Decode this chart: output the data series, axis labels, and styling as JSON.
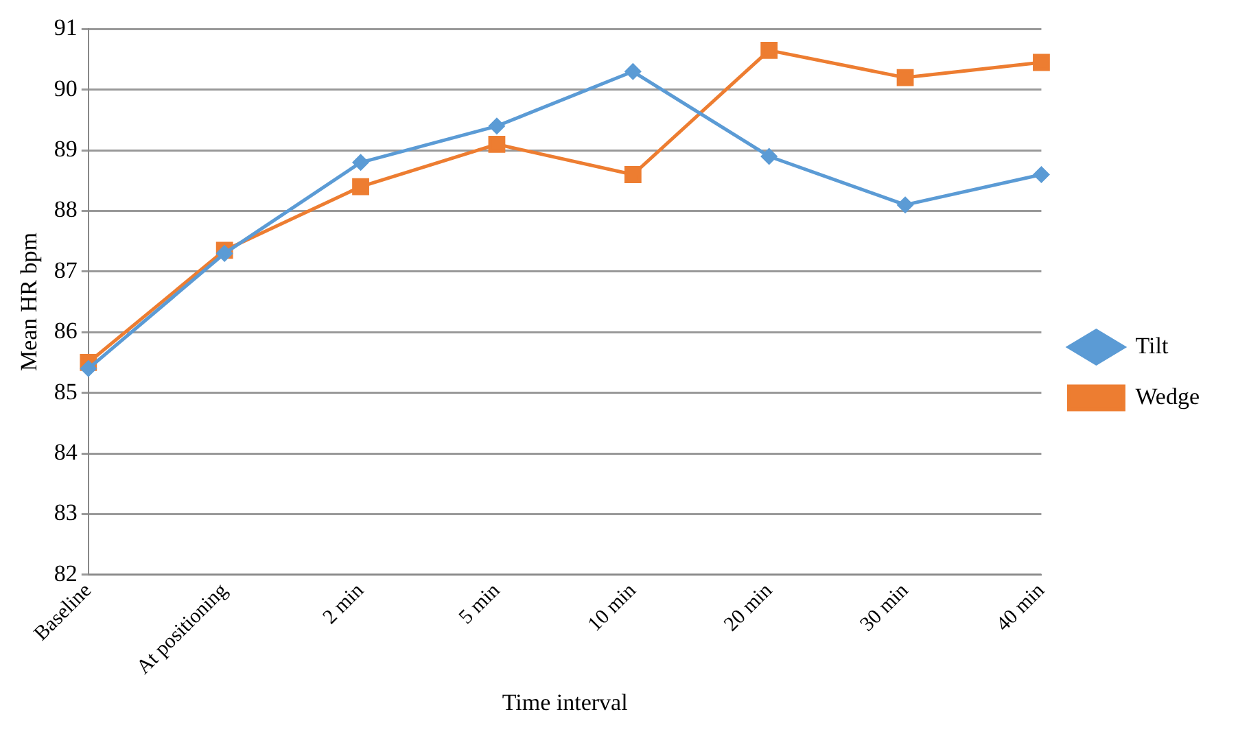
{
  "chart_data": {
    "type": "line",
    "xlabel": "Time interval",
    "ylabel": "Mean HR bpm",
    "categories": [
      "Baseline",
      "At positioning",
      "2 min",
      "5 min",
      "10 min",
      "20 min",
      "30 min",
      "40 min"
    ],
    "series": [
      {
        "name": "Tilt",
        "color": "#5b9bd5",
        "marker": "diamond",
        "values": [
          85.4,
          87.3,
          88.8,
          89.4,
          90.3,
          88.9,
          88.1,
          88.6
        ]
      },
      {
        "name": "Wedge",
        "color": "#ed7d31",
        "marker": "square",
        "values": [
          85.5,
          87.35,
          88.4,
          89.1,
          88.6,
          90.65,
          90.2,
          90.45
        ]
      }
    ],
    "ylim": [
      82,
      91
    ],
    "yticks": [
      82,
      83,
      84,
      85,
      86,
      87,
      88,
      89,
      90,
      91
    ],
    "grid": "y",
    "legend": "right"
  }
}
